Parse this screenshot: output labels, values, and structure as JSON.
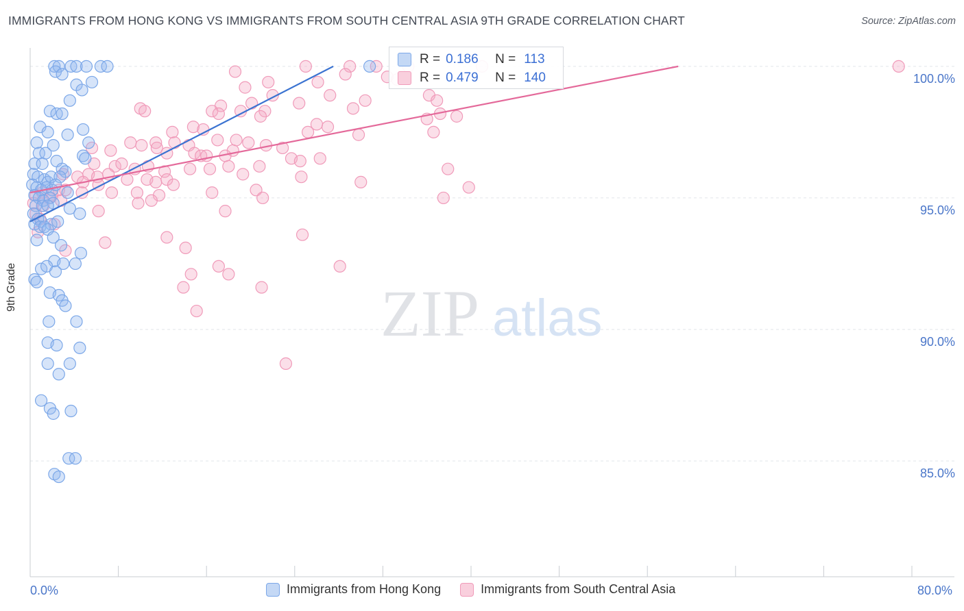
{
  "header": {
    "title": "IMMIGRANTS FROM HONG KONG VS IMMIGRANTS FROM SOUTH CENTRAL ASIA 9TH GRADE CORRELATION CHART",
    "source": "Source: ZipAtlas.com"
  },
  "watermark": {
    "zip": "ZIP",
    "atlas": "atlas"
  },
  "axes": {
    "ylabel": "9th Grade",
    "x_left_label": "0.0%",
    "x_right_label": "80.0%",
    "y_ticks": [
      {
        "value": 100.0,
        "label": "100.0%"
      },
      {
        "value": 95.0,
        "label": "95.0%"
      },
      {
        "value": 90.0,
        "label": "90.0%"
      },
      {
        "value": 85.0,
        "label": "85.0%"
      }
    ]
  },
  "legend": {
    "r_label": "R =",
    "n_label": "N =",
    "rows": [
      {
        "r": "0.186",
        "n": "113",
        "color": "#7ba7e8",
        "fill": "#c4d8f5"
      },
      {
        "r": "0.479",
        "n": "140",
        "color": "#f09ab9",
        "fill": "#f9cfdd"
      }
    ]
  },
  "colors": {
    "blue": "#3b73d1",
    "pink": "#e4699a",
    "tick_text": "#4a76c9",
    "grid": "#e2e5ea"
  },
  "chart_data": {
    "type": "scatter",
    "title": "IMMIGRANTS FROM HONG KONG VS IMMIGRANTS FROM SOUTH CENTRAL ASIA 9TH GRADE CORRELATION CHART",
    "xlabel": "",
    "ylabel": "9th Grade",
    "xlim": [
      0,
      80
    ],
    "ylim": [
      80.6,
      100.7
    ],
    "grid": true,
    "legend_position": "bottom",
    "series": [
      {
        "name": "Immigrants from Hong Kong",
        "color": "#7ba7e8",
        "stats": {
          "R": 0.186,
          "N": 113
        },
        "trend": {
          "x": [
            0,
            27.5
          ],
          "y": [
            94.1,
            100.0
          ]
        },
        "points": [
          [
            2.2,
            100.0
          ],
          [
            2.6,
            100.0
          ],
          [
            3.7,
            100.0
          ],
          [
            4.2,
            100.0
          ],
          [
            5.1,
            100.0
          ],
          [
            6.4,
            100.0
          ],
          [
            7.0,
            100.0
          ],
          [
            30.8,
            100.0
          ],
          [
            2.3,
            99.8
          ],
          [
            2.9,
            99.7
          ],
          [
            4.2,
            99.3
          ],
          [
            5.6,
            99.4
          ],
          [
            4.7,
            99.1
          ],
          [
            3.6,
            98.7
          ],
          [
            1.8,
            98.3
          ],
          [
            2.4,
            98.2
          ],
          [
            2.9,
            98.2
          ],
          [
            0.9,
            97.7
          ],
          [
            4.8,
            97.6
          ],
          [
            1.6,
            97.5
          ],
          [
            3.4,
            97.4
          ],
          [
            0.6,
            97.1
          ],
          [
            2.1,
            97.0
          ],
          [
            5.3,
            97.1
          ],
          [
            0.8,
            96.7
          ],
          [
            1.4,
            96.7
          ],
          [
            4.8,
            96.6
          ],
          [
            5.0,
            96.5
          ],
          [
            0.4,
            96.3
          ],
          [
            1.1,
            96.3
          ],
          [
            2.4,
            96.4
          ],
          [
            2.9,
            96.1
          ],
          [
            3.2,
            96.0
          ],
          [
            0.3,
            95.9
          ],
          [
            0.7,
            95.8
          ],
          [
            1.3,
            95.7
          ],
          [
            1.6,
            95.6
          ],
          [
            1.9,
            95.8
          ],
          [
            2.7,
            95.8
          ],
          [
            0.2,
            95.5
          ],
          [
            0.6,
            95.4
          ],
          [
            1.0,
            95.3
          ],
          [
            1.5,
            95.4
          ],
          [
            2.0,
            95.3
          ],
          [
            2.3,
            95.5
          ],
          [
            3.4,
            95.2
          ],
          [
            0.4,
            95.1
          ],
          [
            0.8,
            95.0
          ],
          [
            1.2,
            94.9
          ],
          [
            1.8,
            95.0
          ],
          [
            2.1,
            94.8
          ],
          [
            0.5,
            94.7
          ],
          [
            1.1,
            94.7
          ],
          [
            1.6,
            94.7
          ],
          [
            3.6,
            94.6
          ],
          [
            4.5,
            94.4
          ],
          [
            0.3,
            94.4
          ],
          [
            0.7,
            94.2
          ],
          [
            1.0,
            94.1
          ],
          [
            1.9,
            94.0
          ],
          [
            2.5,
            94.1
          ],
          [
            0.4,
            94.0
          ],
          [
            0.9,
            93.9
          ],
          [
            1.3,
            93.9
          ],
          [
            1.6,
            93.8
          ],
          [
            2.1,
            93.5
          ],
          [
            0.6,
            93.4
          ],
          [
            2.8,
            93.2
          ],
          [
            4.6,
            92.9
          ],
          [
            2.2,
            92.6
          ],
          [
            3.0,
            92.5
          ],
          [
            4.1,
            92.5
          ],
          [
            1.0,
            92.3
          ],
          [
            1.5,
            92.4
          ],
          [
            2.3,
            92.2
          ],
          [
            0.4,
            91.9
          ],
          [
            0.6,
            91.8
          ],
          [
            1.8,
            91.4
          ],
          [
            2.6,
            91.3
          ],
          [
            2.9,
            91.1
          ],
          [
            3.2,
            90.9
          ],
          [
            1.7,
            90.3
          ],
          [
            4.2,
            90.3
          ],
          [
            1.6,
            89.5
          ],
          [
            2.4,
            89.4
          ],
          [
            4.5,
            89.3
          ],
          [
            1.6,
            88.7
          ],
          [
            3.6,
            88.7
          ],
          [
            2.6,
            88.3
          ],
          [
            1.0,
            87.3
          ],
          [
            1.8,
            87.0
          ],
          [
            3.7,
            86.9
          ],
          [
            2.1,
            86.8
          ],
          [
            3.5,
            85.1
          ],
          [
            4.1,
            85.1
          ],
          [
            2.2,
            84.5
          ],
          [
            2.6,
            84.4
          ]
        ]
      },
      {
        "name": "Immigrants from South Central Asia",
        "color": "#f09ab9",
        "stats": {
          "R": 0.479,
          "N": 140
        },
        "trend": {
          "x": [
            0,
            58.8
          ],
          "y": [
            95.2,
            100.0
          ]
        },
        "points": [
          [
            25.0,
            100.0
          ],
          [
            29.0,
            100.0
          ],
          [
            31.4,
            100.0
          ],
          [
            34.3,
            100.0
          ],
          [
            41.0,
            100.0
          ],
          [
            78.8,
            100.0
          ],
          [
            18.6,
            99.8
          ],
          [
            28.6,
            99.7
          ],
          [
            21.6,
            99.4
          ],
          [
            26.1,
            99.4
          ],
          [
            32.4,
            99.6
          ],
          [
            33.3,
            99.5
          ],
          [
            19.5,
            99.2
          ],
          [
            22.0,
            98.9
          ],
          [
            27.2,
            98.9
          ],
          [
            30.4,
            98.7
          ],
          [
            20.1,
            98.6
          ],
          [
            24.4,
            98.6
          ],
          [
            17.3,
            98.5
          ],
          [
            36.2,
            98.9
          ],
          [
            36.9,
            98.7
          ],
          [
            10.0,
            98.4
          ],
          [
            10.4,
            98.3
          ],
          [
            16.5,
            98.3
          ],
          [
            19.1,
            98.3
          ],
          [
            21.3,
            98.3
          ],
          [
            17.1,
            98.2
          ],
          [
            20.9,
            98.1
          ],
          [
            29.3,
            98.4
          ],
          [
            37.2,
            98.2
          ],
          [
            38.7,
            98.1
          ],
          [
            36.0,
            98.0
          ],
          [
            14.8,
            97.7
          ],
          [
            12.9,
            97.5
          ],
          [
            15.7,
            97.6
          ],
          [
            26.0,
            97.8
          ],
          [
            27.0,
            97.7
          ],
          [
            25.2,
            97.5
          ],
          [
            18.7,
            97.2
          ],
          [
            19.8,
            97.1
          ],
          [
            9.1,
            97.1
          ],
          [
            10.1,
            97.0
          ],
          [
            11.4,
            97.1
          ],
          [
            13.1,
            97.1
          ],
          [
            17.0,
            97.2
          ],
          [
            14.4,
            97.0
          ],
          [
            21.4,
            97.0
          ],
          [
            29.8,
            97.4
          ],
          [
            36.6,
            97.5
          ],
          [
            5.6,
            96.9
          ],
          [
            7.3,
            96.8
          ],
          [
            11.5,
            96.9
          ],
          [
            18.4,
            96.8
          ],
          [
            22.9,
            96.9
          ],
          [
            23.7,
            96.5
          ],
          [
            12.4,
            96.7
          ],
          [
            14.9,
            96.7
          ],
          [
            15.5,
            96.6
          ],
          [
            16.0,
            96.6
          ],
          [
            17.7,
            96.6
          ],
          [
            24.5,
            96.4
          ],
          [
            26.3,
            96.5
          ],
          [
            5.8,
            96.3
          ],
          [
            7.7,
            96.2
          ],
          [
            8.3,
            96.3
          ],
          [
            9.5,
            96.1
          ],
          [
            10.7,
            96.2
          ],
          [
            12.2,
            96.0
          ],
          [
            14.5,
            96.1
          ],
          [
            16.3,
            96.1
          ],
          [
            18.0,
            96.2
          ],
          [
            20.8,
            96.2
          ],
          [
            37.9,
            96.1
          ],
          [
            3.0,
            95.9
          ],
          [
            4.3,
            95.8
          ],
          [
            5.3,
            95.9
          ],
          [
            6.1,
            95.8
          ],
          [
            7.1,
            95.9
          ],
          [
            8.8,
            95.7
          ],
          [
            10.6,
            95.7
          ],
          [
            11.4,
            95.6
          ],
          [
            12.4,
            95.7
          ],
          [
            19.3,
            95.9
          ],
          [
            24.6,
            95.8
          ],
          [
            30.0,
            95.6
          ],
          [
            4.8,
            95.6
          ],
          [
            6.2,
            95.5
          ],
          [
            13.0,
            95.5
          ],
          [
            16.5,
            95.2
          ],
          [
            20.5,
            95.3
          ],
          [
            39.8,
            95.4
          ],
          [
            2.6,
            95.3
          ],
          [
            3.2,
            95.3
          ],
          [
            4.7,
            95.2
          ],
          [
            7.4,
            95.2
          ],
          [
            9.7,
            95.2
          ],
          [
            11.7,
            95.1
          ],
          [
            0.5,
            95.1
          ],
          [
            1.1,
            95.2
          ],
          [
            1.7,
            95.0
          ],
          [
            2.0,
            95.1
          ],
          [
            2.8,
            94.9
          ],
          [
            21.1,
            95.0
          ],
          [
            37.5,
            95.0
          ],
          [
            0.3,
            94.8
          ],
          [
            1.2,
            94.7
          ],
          [
            9.8,
            94.8
          ],
          [
            11.0,
            94.9
          ],
          [
            6.2,
            94.5
          ],
          [
            17.7,
            94.5
          ],
          [
            0.5,
            94.4
          ],
          [
            0.9,
            94.2
          ],
          [
            2.2,
            94.0
          ],
          [
            0.7,
            93.7
          ],
          [
            12.4,
            93.5
          ],
          [
            24.7,
            93.6
          ],
          [
            6.8,
            93.3
          ],
          [
            14.1,
            93.1
          ],
          [
            3.2,
            93.0
          ],
          [
            17.1,
            92.4
          ],
          [
            14.6,
            92.1
          ],
          [
            18.0,
            92.1
          ],
          [
            28.1,
            92.4
          ],
          [
            21.0,
            91.6
          ],
          [
            13.9,
            91.6
          ],
          [
            15.1,
            90.7
          ],
          [
            23.2,
            88.7
          ]
        ]
      }
    ]
  }
}
